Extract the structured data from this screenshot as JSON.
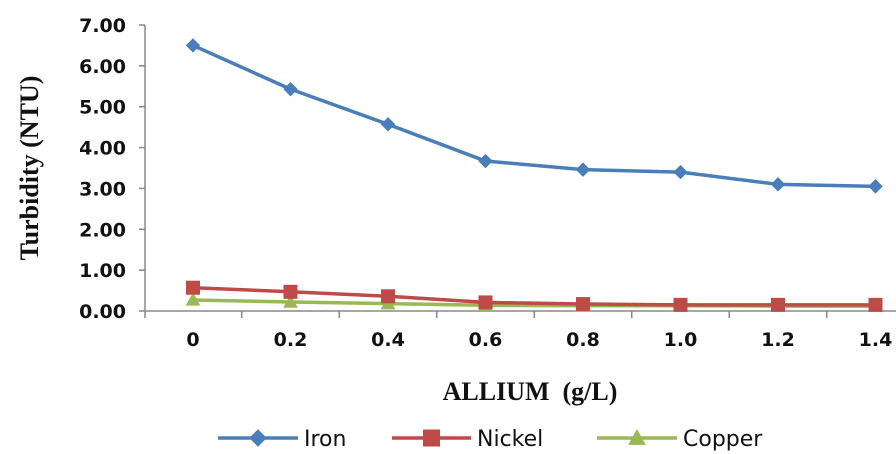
{
  "chart_data": {
    "type": "line",
    "xlabel": "ALLIUM  (g/L)",
    "ylabel": "Turbidity (NTU)",
    "categories": [
      "0",
      "0.2",
      "0.4",
      "0.6",
      "0.8",
      "1.0",
      "1.2",
      "1.4"
    ],
    "y_ticks": [
      "0.00",
      "1.00",
      "2.00",
      "3.00",
      "4.00",
      "5.00",
      "6.00",
      "7.00"
    ],
    "ylim": [
      0,
      7
    ],
    "grid": false,
    "legend_position": "bottom",
    "series": [
      {
        "name": "Iron",
        "color": "#4a7ebb",
        "marker": "diamond",
        "values": [
          6.5,
          5.43,
          4.57,
          3.67,
          3.46,
          3.4,
          3.1,
          3.05
        ]
      },
      {
        "name": "Nickel",
        "color": "#be4b48",
        "marker": "square",
        "values": [
          0.57,
          0.47,
          0.36,
          0.21,
          0.17,
          0.15,
          0.15,
          0.15
        ]
      },
      {
        "name": "Copper",
        "color": "#98b954",
        "marker": "triangle",
        "values": [
          0.27,
          0.22,
          0.18,
          0.14,
          0.13,
          0.13,
          0.12,
          0.12
        ]
      }
    ]
  }
}
